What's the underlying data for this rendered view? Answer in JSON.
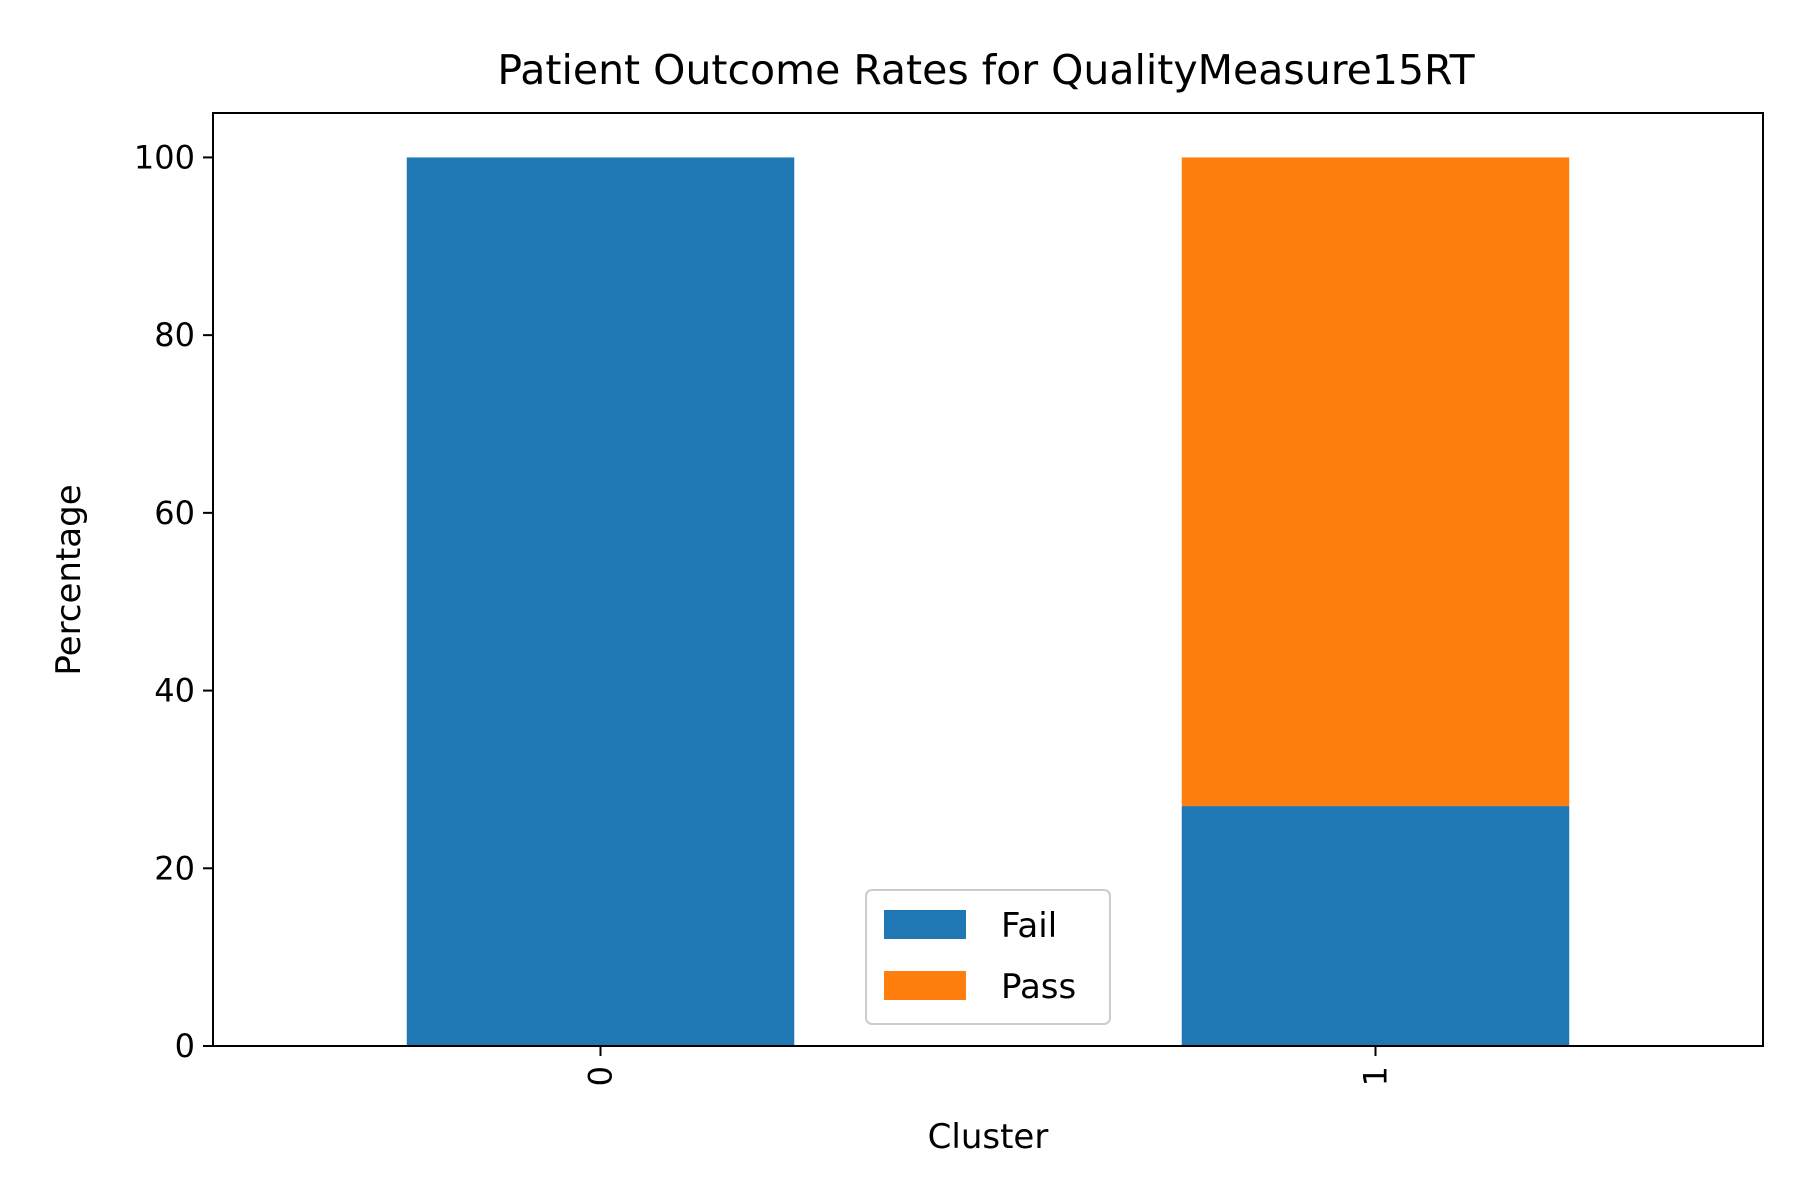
{
  "chart_data": {
    "type": "bar",
    "stacked": true,
    "title": "Patient Outcome Rates for QualityMeasure15RT",
    "xlabel": "Cluster",
    "ylabel": "Percentage",
    "categories": [
      "0",
      "1"
    ],
    "series": [
      {
        "name": "Fail",
        "color": "#1f77b4",
        "values": [
          100,
          27
        ]
      },
      {
        "name": "Pass",
        "color": "#ff7f0e",
        "values": [
          0,
          73
        ]
      }
    ],
    "ylim": [
      0,
      105
    ],
    "yticks": [
      0,
      20,
      40,
      60,
      80,
      100
    ],
    "grid": false,
    "legend_position": "lower-center",
    "xtick_rotation": 90
  }
}
